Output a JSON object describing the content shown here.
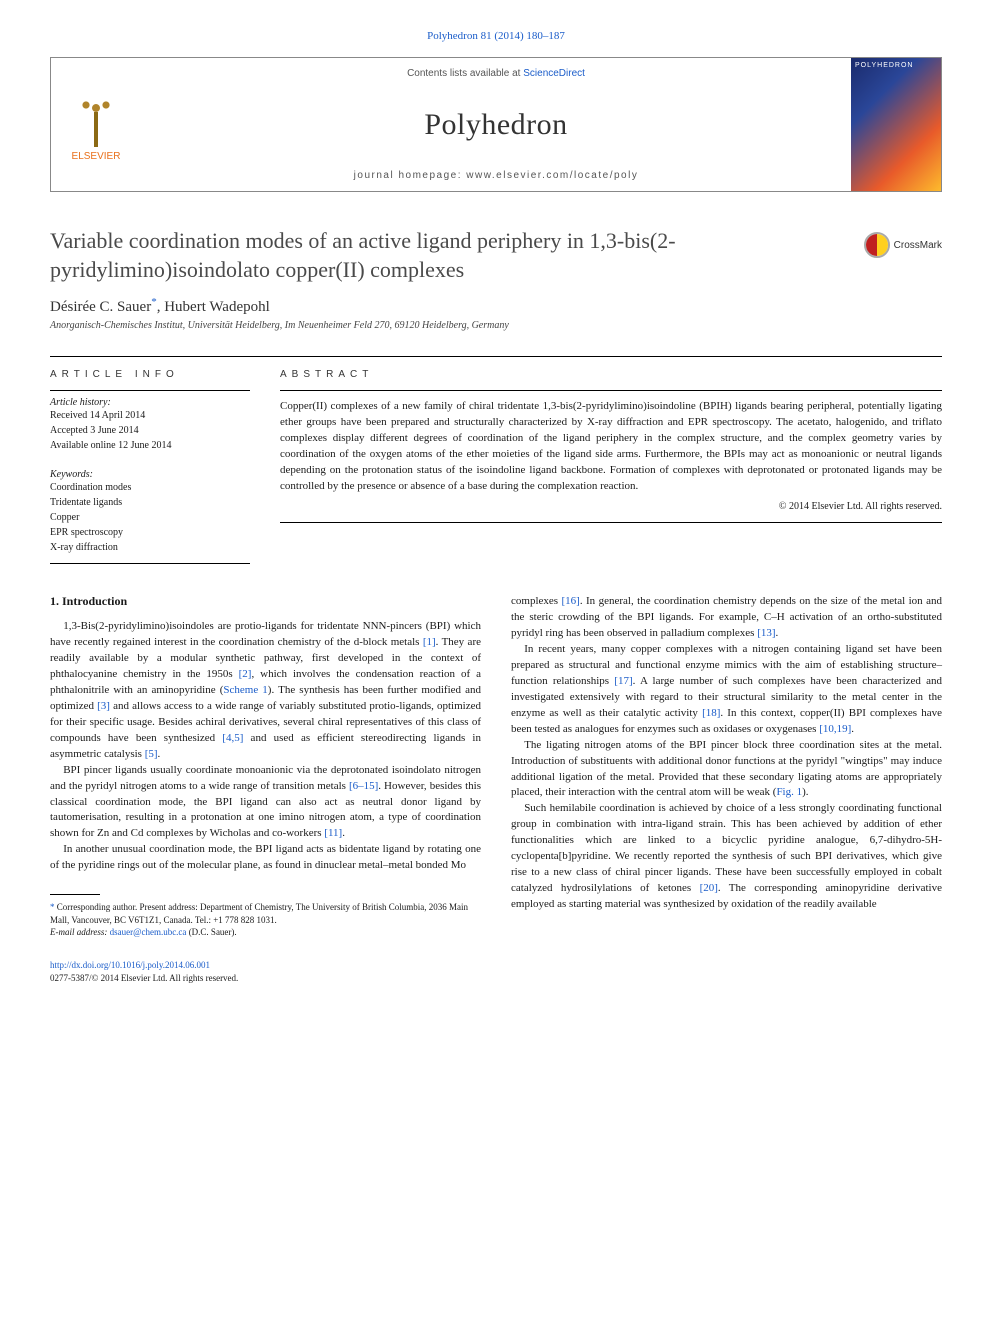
{
  "citation": "Polyhedron 81 (2014) 180–187",
  "header": {
    "publisher": "ELSEVIER",
    "contents_prefix": "Contents lists available at ",
    "contents_link": "ScienceDirect",
    "journal_name": "Polyhedron",
    "homepage_prefix": "journal homepage: ",
    "homepage_url": "www.elsevier.com/locate/poly",
    "cover_label": "POLYHEDRON"
  },
  "title": "Variable coordination modes of an active ligand periphery in 1,3-bis(2-pyridylimino)isoindolato copper(II) complexes",
  "crossmark_label": "CrossMark",
  "authors": [
    {
      "name": "Désirée C. Sauer",
      "marker": "*"
    },
    {
      "name": "Hubert Wadepohl",
      "marker": ""
    }
  ],
  "affiliation": "Anorganisch-Chemisches Institut, Universität Heidelberg, Im Neuenheimer Feld 270, 69120 Heidelberg, Germany",
  "article_info": {
    "heading": "ARTICLE INFO",
    "history_heading": "Article history:",
    "history": [
      "Received 14 April 2014",
      "Accepted 3 June 2014",
      "Available online 12 June 2014"
    ],
    "keywords_heading": "Keywords:",
    "keywords": [
      "Coordination modes",
      "Tridentate ligands",
      "Copper",
      "EPR spectroscopy",
      "X-ray diffraction"
    ]
  },
  "abstract": {
    "heading": "ABSTRACT",
    "text": "Copper(II) complexes of a new family of chiral tridentate 1,3-bis(2-pyridylimino)isoindoline (BPIH) ligands bearing peripheral, potentially ligating ether groups have been prepared and structurally characterized by X-ray diffraction and EPR spectroscopy. The acetato, halogenido, and triflato complexes display different degrees of coordination of the ligand periphery in the complex structure, and the complex geometry varies by coordination of the oxygen atoms of the ether moieties of the ligand side arms. Furthermore, the BPIs may act as monoanionic or neutral ligands depending on the protonation status of the isoindoline ligand backbone. Formation of complexes with deprotonated or protonated ligands may be controlled by the presence or absence of a base during the complexation reaction.",
    "copyright": "© 2014 Elsevier Ltd. All rights reserved."
  },
  "body": {
    "section_heading": "1. Introduction",
    "left_paras": [
      "1,3-Bis(2-pyridylimino)isoindoles are protio-ligands for tridentate NNN-pincers (BPI) which have recently regained interest in the coordination chemistry of the d-block metals [1]. They are readily available by a modular synthetic pathway, first developed in the context of phthalocyanine chemistry in the 1950s [2], which involves the condensation reaction of a phthalonitrile with an aminopyridine (Scheme 1). The synthesis has been further modified and optimized [3] and allows access to a wide range of variably substituted protio-ligands, optimized for their specific usage. Besides achiral derivatives, several chiral representatives of this class of compounds have been synthesized [4,5] and used as efficient stereodirecting ligands in asymmetric catalysis [5].",
      "BPI pincer ligands usually coordinate monoanionic via the deprotonated isoindolato nitrogen and the pyridyl nitrogen atoms to a wide range of transition metals [6–15]. However, besides this classical coordination mode, the BPI ligand can also act as neutral donor ligand by tautomerisation, resulting in a protonation at one imino nitrogen atom, a type of coordination shown for Zn and Cd complexes by Wicholas and co-workers [11].",
      "In another unusual coordination mode, the BPI ligand acts as bidentate ligand by rotating one of the pyridine rings out of the molecular plane, as found in dinuclear metal–metal bonded Mo"
    ],
    "right_paras": [
      "complexes [16]. In general, the coordination chemistry depends on the size of the metal ion and the steric crowding of the BPI ligands. For example, C–H activation of an ortho-substituted pyridyl ring has been observed in palladium complexes [13].",
      "In recent years, many copper complexes with a nitrogen containing ligand set have been prepared as structural and functional enzyme mimics with the aim of establishing structure–function relationships [17]. A large number of such complexes have been characterized and investigated extensively with regard to their structural similarity to the metal center in the enzyme as well as their catalytic activity [18]. In this context, copper(II) BPI complexes have been tested as analogues for enzymes such as oxidases or oxygenases [10,19].",
      "The ligating nitrogen atoms of the BPI pincer block three coordination sites at the metal. Introduction of substituents with additional donor functions at the pyridyl \"wingtips\" may induce additional ligation of the metal. Provided that these secondary ligating atoms are appropriately placed, their interaction with the central atom will be weak (Fig. 1).",
      "Such hemilabile coordination is achieved by choice of a less strongly coordinating functional group in combination with intra-ligand strain. This has been achieved by addition of ether functionalities which are linked to a bicyclic pyridine analogue, 6,7-dihydro-5H-cyclopenta[b]pyridine. We recently reported the synthesis of such BPI derivatives, which give rise to a new class of chiral pincer ligands. These have been successfully employed in cobalt catalyzed hydrosilylations of ketones [20]. The corresponding aminopyridine derivative employed as starting material was synthesized by oxidation of the readily available"
    ]
  },
  "footnote": {
    "corresponding": "* Corresponding author. Present address: Department of Chemistry, The University of British Columbia, 2036 Main Mall, Vancouver, BC V6T1Z1, Canada. Tel.: +1 778 828 1031.",
    "email_label": "E-mail address: ",
    "email": "dsauer@chem.ubc.ca",
    "email_person": " (D.C. Sauer)."
  },
  "footer": {
    "doi": "http://dx.doi.org/10.1016/j.poly.2014.06.001",
    "issn": "0277-5387/© 2014 Elsevier Ltd. All rights reserved."
  },
  "colors": {
    "link": "#1a5cc9",
    "publisher": "#e9711c"
  }
}
